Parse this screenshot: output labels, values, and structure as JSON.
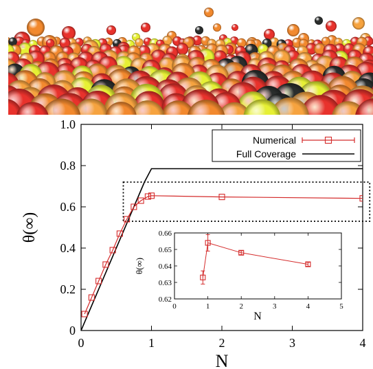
{
  "photo": {
    "content": "packed spheres",
    "colors": {
      "red": "#e8322c",
      "orange": "#f2892e",
      "light_orange": "#f6a33f",
      "yellow": "#e6f034",
      "black": "#2a2d2c"
    }
  },
  "chart_data": [
    {
      "type": "line",
      "xlabel": "N",
      "ylabel": "θ(∞)",
      "xlim": [
        0,
        4
      ],
      "ylim": [
        0,
        1.0
      ],
      "xticks": [
        "0",
        "1",
        "2",
        "3",
        "4"
      ],
      "yticks": [
        "0",
        "0.2",
        "0.4",
        "0.6",
        "0.8",
        "1.0"
      ],
      "grid": false,
      "legend_position": "top-right",
      "series": [
        {
          "name": "Numerical",
          "color": "#d42a2a",
          "marker": "open-square",
          "x": [
            0.05,
            0.15,
            0.25,
            0.35,
            0.45,
            0.55,
            0.65,
            0.75,
            0.85,
            0.95,
            1.0,
            2.0,
            4.0
          ],
          "y": [
            0.08,
            0.16,
            0.24,
            0.32,
            0.39,
            0.47,
            0.54,
            0.6,
            0.63,
            0.65,
            0.654,
            0.648,
            0.641
          ]
        },
        {
          "name": "Full Coverage",
          "color": "#000000",
          "marker": "none",
          "x": [
            0,
            0.9,
            1.0,
            4.0
          ],
          "y": [
            0,
            0.72,
            0.785,
            0.785
          ]
        }
      ],
      "annotation": {
        "type": "dotted-box",
        "x_range": [
          0.6,
          4.1
        ],
        "y_range": [
          0.53,
          0.72
        ]
      }
    },
    {
      "type": "line",
      "inset": true,
      "xlabel": "N",
      "ylabel": "θ(∞)",
      "xlim": [
        0,
        5
      ],
      "ylim": [
        0.62,
        0.66
      ],
      "xticks": [
        "0",
        "1",
        "2",
        "3",
        "4",
        "5"
      ],
      "yticks": [
        "0.62",
        "0.63",
        "0.64",
        "0.65",
        "0.66"
      ],
      "series": [
        {
          "name": "",
          "color": "#d42a2a",
          "marker": "open-square",
          "x": [
            0.85,
            1.0,
            2.0,
            4.0
          ],
          "y": [
            0.633,
            0.654,
            0.648,
            0.641
          ],
          "yerr": [
            0.004,
            0.005,
            0.0012,
            0.0012
          ]
        }
      ]
    }
  ]
}
